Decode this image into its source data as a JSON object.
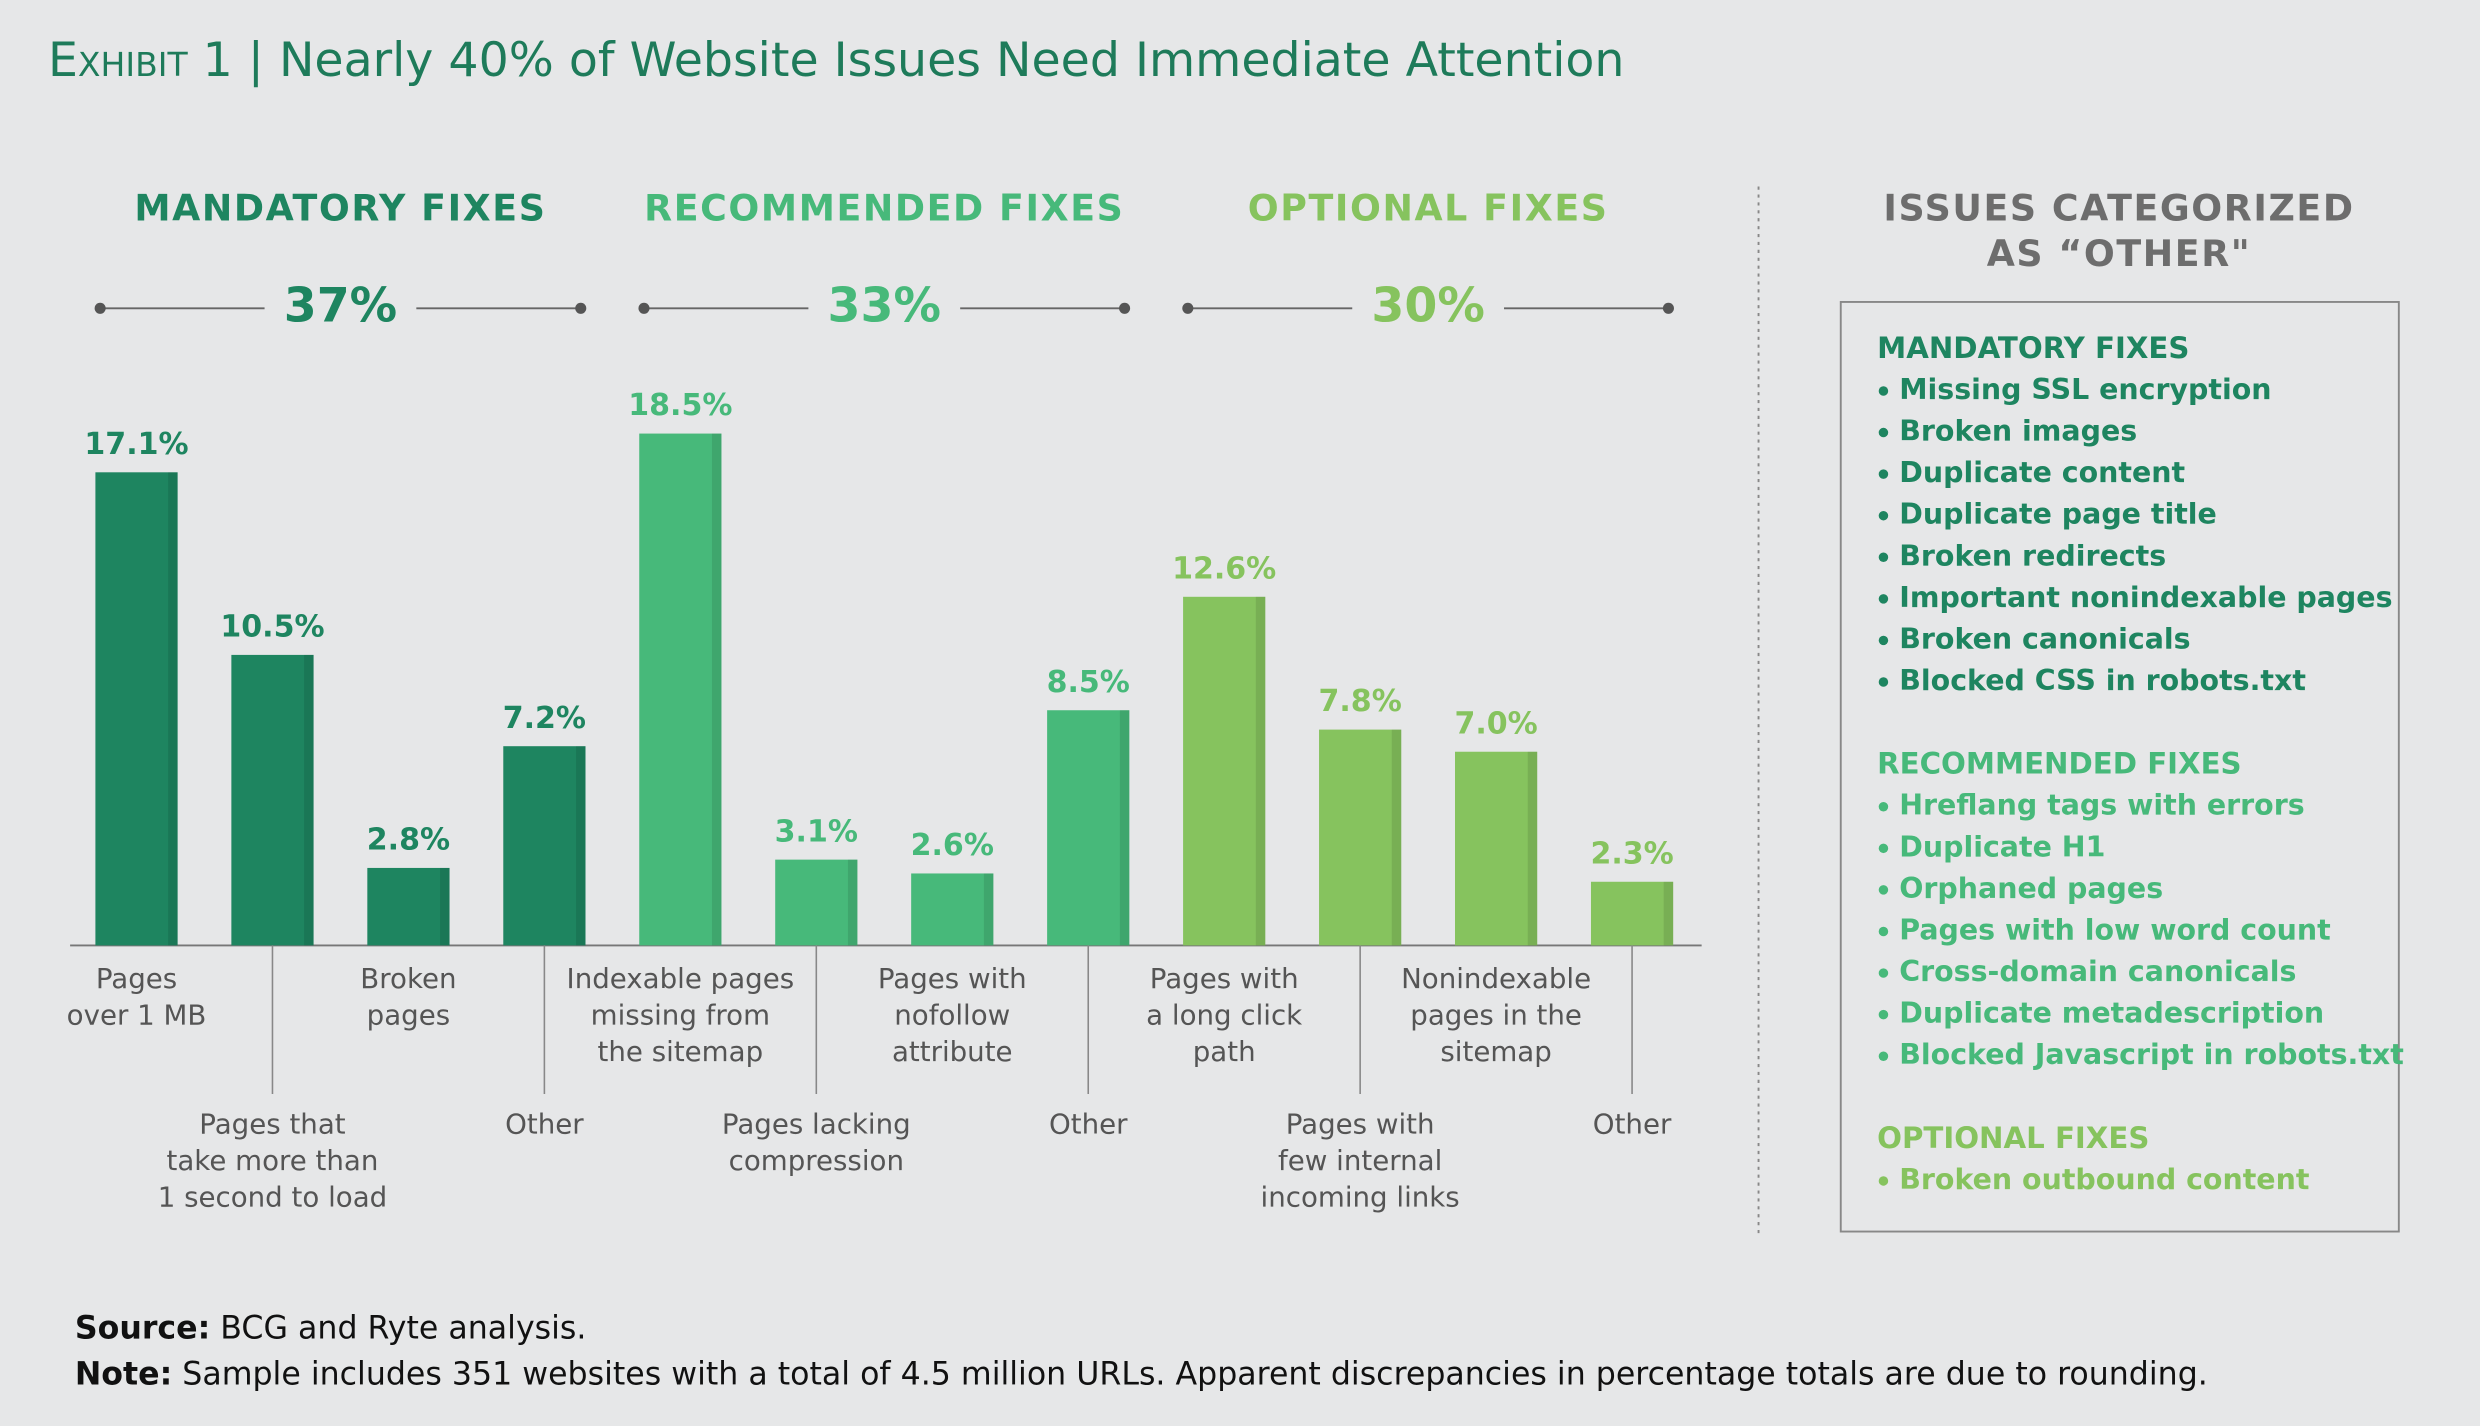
{
  "chart_data": {
    "type": "bar",
    "exhibit": "Exhibit 1",
    "title": "Nearly 40% of Website Issues Need Immediate Attention",
    "groups": [
      {
        "name": "MANDATORY FIXES",
        "share": 37,
        "share_label": "37%",
        "color": "#1e8560",
        "categories": [
          "Pages\nover 1 MB",
          "Pages that\ntake more than\n1 second to load",
          "Broken\npages",
          "Other"
        ],
        "values": [
          17.1,
          10.5,
          2.8,
          7.2
        ],
        "value_labels": [
          "17.1%",
          "10.5%",
          "2.8%",
          "7.2%"
        ]
      },
      {
        "name": "RECOMMENDED FIXES",
        "share": 33,
        "share_label": "33%",
        "color": "#47b97a",
        "categories": [
          "Indexable pages\nmissing from\nthe sitemap",
          "Pages lacking\ncompression",
          "Pages with\nnofollow\nattribute",
          "Other"
        ],
        "values": [
          18.5,
          3.1,
          2.6,
          8.5
        ],
        "value_labels": [
          "18.5%",
          "3.1%",
          "2.6%",
          "8.5%"
        ]
      },
      {
        "name": "OPTIONAL FIXES",
        "share": 30,
        "share_label": "30%",
        "color": "#86c35e",
        "categories": [
          "Pages with\na long click\npath",
          "Pages with\nfew internal\nincoming links",
          "Nonindexable\npages in the\nsitemap",
          "Other"
        ],
        "values": [
          12.6,
          7.8,
          7.0,
          2.3
        ],
        "value_labels": [
          "12.6%",
          "7.8%",
          "7.0%",
          "2.3%"
        ]
      }
    ]
  },
  "other_panel": {
    "title": "ISSUES CATEGORIZED\nAS “OTHER\"",
    "sections": [
      {
        "heading": "MANDATORY FIXES",
        "color": "#1e8560",
        "items": [
          "Missing SSL encryption",
          "Broken images",
          "Duplicate content",
          "Duplicate page title",
          "Broken redirects",
          "Important nonindexable pages",
          "Broken canonicals",
          "Blocked CSS in robots.txt"
        ]
      },
      {
        "heading": "RECOMMENDED FIXES",
        "color": "#47b97a",
        "items": [
          "Hreflang tags with errors",
          "Duplicate H1",
          "Orphaned pages",
          "Pages with low word count",
          "Cross-domain canonicals",
          "Duplicate metadescription",
          "Blocked Javascript in robots.txt"
        ]
      },
      {
        "heading": "OPTIONAL FIXES",
        "color": "#86c35e",
        "items": [
          "Broken outbound content"
        ]
      }
    ]
  },
  "footer": {
    "source_label": "Source:",
    "source_text": "BCG and Ryte analysis.",
    "note_label": "Note:",
    "note_text": "Sample includes 351 websites with a total of 4.5 million URLs. Apparent discrepancies in percentage totals are due to rounding."
  }
}
